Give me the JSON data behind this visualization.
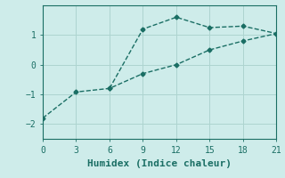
{
  "xlabel": "Humidex (Indice chaleur)",
  "background_color": "#ceecea",
  "grid_color": "#aed4d0",
  "line_color": "#1a6e64",
  "line1_x": [
    0,
    3,
    6,
    9,
    12,
    15,
    18,
    21
  ],
  "line1_y": [
    -1.8,
    -0.92,
    -0.8,
    -0.3,
    0.0,
    0.5,
    0.8,
    1.05
  ],
  "line2_x": [
    6,
    9,
    12,
    15,
    18,
    21
  ],
  "line2_y": [
    -0.8,
    1.2,
    1.6,
    1.25,
    1.3,
    1.05
  ],
  "xlim": [
    0,
    21
  ],
  "ylim": [
    -2.5,
    2.0
  ],
  "xticks": [
    0,
    3,
    6,
    9,
    12,
    15,
    18,
    21
  ],
  "yticks": [
    -2,
    -1,
    0,
    1
  ],
  "marker": "D",
  "markersize": 2.5,
  "linewidth": 1.0,
  "xlabel_fontsize": 8,
  "tick_fontsize": 7
}
